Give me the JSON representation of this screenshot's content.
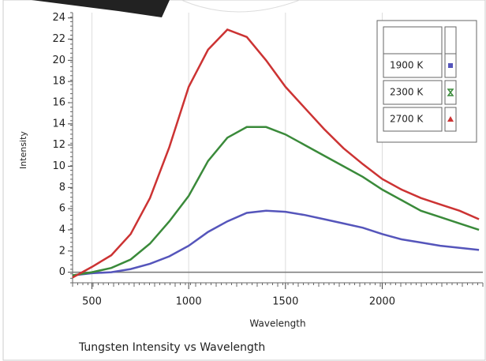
{
  "chart_data": {
    "type": "line",
    "title": "Tungsten  Intensity vs Wavelength",
    "x_label": "Wavelength",
    "y_label": "Intensity",
    "x": [
      400,
      500,
      600,
      700,
      800,
      900,
      1000,
      1100,
      1200,
      1300,
      1400,
      1500,
      1600,
      1700,
      1800,
      1900,
      2000,
      2100,
      2200,
      2300,
      2400,
      2500
    ],
    "series": [
      {
        "name": "1900 K",
        "color": "#5555bb",
        "marker": "square",
        "values": [
          -0.3,
          -0.1,
          0,
          0.3,
          0.8,
          1.5,
          2.5,
          3.8,
          4.8,
          5.6,
          5.8,
          5.7,
          5.4,
          5,
          4.6,
          4.2,
          3.6,
          3.1,
          2.8,
          2.5,
          2.3,
          2.1
        ]
      },
      {
        "name": "2300 K",
        "color": "#3a8a3a",
        "marker": "hourglass",
        "values": [
          -0.3,
          0,
          0.4,
          1.2,
          2.7,
          4.8,
          7.2,
          10.5,
          12.7,
          13.7,
          13.7,
          13,
          12,
          11,
          10,
          9,
          7.8,
          6.8,
          5.8,
          5.2,
          4.6,
          4
        ]
      },
      {
        "name": "2700 K",
        "color": "#cc3333",
        "marker": "triangle",
        "values": [
          -0.5,
          0.5,
          1.6,
          3.6,
          7,
          11.8,
          17.5,
          21,
          22.9,
          22.2,
          20,
          17.5,
          15.5,
          13.5,
          11.7,
          10.2,
          8.8,
          7.8,
          7,
          6.4,
          5.8,
          5
        ]
      }
    ],
    "xlim": [
      400,
      2520
    ],
    "xticks": [
      500,
      1000,
      1500,
      2000
    ],
    "ylim": [
      -1,
      24.5
    ],
    "yticks": [
      0,
      2,
      4,
      6,
      8,
      10,
      12,
      14,
      16,
      18,
      20,
      22,
      24
    ],
    "grid": true,
    "legend": "top-right"
  }
}
